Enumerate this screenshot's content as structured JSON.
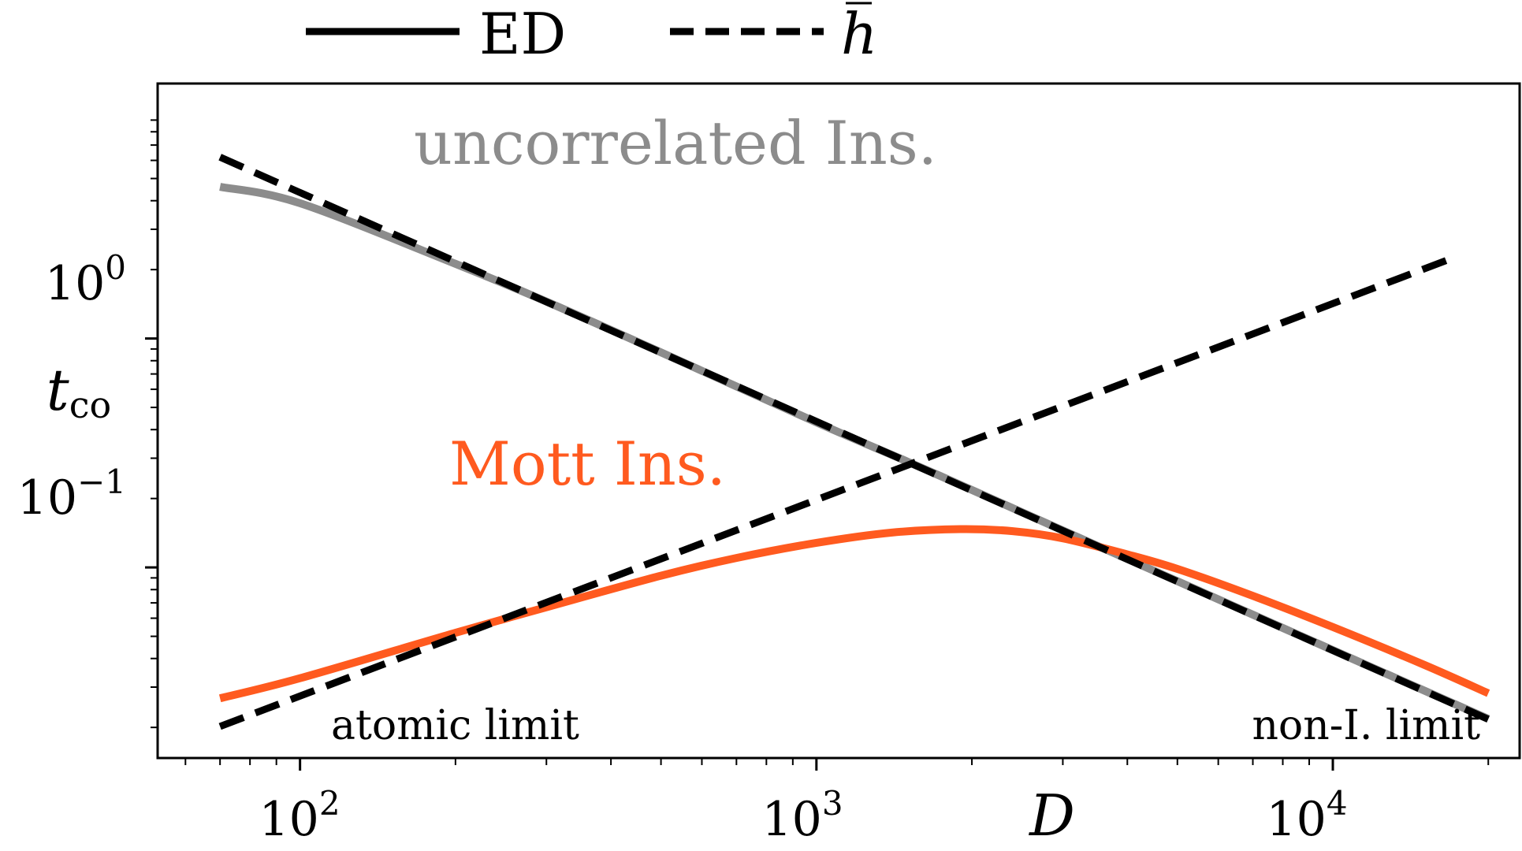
{
  "chart_data": {
    "type": "line",
    "xscale": "log",
    "yscale": "log",
    "xlabel": "D",
    "ylabel": "t",
    "ylabel_subscript": "co",
    "xlim": [
      53,
      23000
    ],
    "ylim": [
      0.0147,
      13
    ],
    "xticks": [
      {
        "value": 100,
        "base": "10",
        "exp": "2"
      },
      {
        "value": 1000,
        "base": "10",
        "exp": "3"
      },
      {
        "value": 10000,
        "base": "10",
        "exp": "4"
      }
    ],
    "yticks": [
      {
        "value": 1,
        "base": "10",
        "exp": "0"
      },
      {
        "value": 0.1,
        "base": "10",
        "exp": "−1"
      }
    ],
    "legend": {
      "placement": "top-center",
      "entries": [
        {
          "label": "ED",
          "style": "solid",
          "color": "#000000"
        },
        {
          "label": "h",
          "overbar": true,
          "style": "dashed",
          "color": "#000000"
        }
      ]
    },
    "series": [
      {
        "name": "uncorrelated Ins.",
        "style": "solid",
        "color": "#8c8c8c",
        "x": [
          70,
          100,
          200,
          300,
          500,
          1000,
          1500,
          2000,
          3000,
          5000,
          10000,
          20000
        ],
        "y": [
          4.6,
          3.9,
          2.12,
          1.45,
          0.87,
          0.43,
          0.29,
          0.218,
          0.145,
          0.0871,
          0.0435,
          0.0218
        ]
      },
      {
        "name": "Mott Ins.",
        "style": "solid",
        "color": "#ff5a1f",
        "x": [
          70,
          100,
          200,
          300,
          500,
          700,
          1000,
          1400,
          1900,
          2400,
          3000,
          4000,
          5000,
          7000,
          10000,
          15000,
          20000
        ],
        "y": [
          0.0268,
          0.0328,
          0.0518,
          0.067,
          0.092,
          0.11,
          0.128,
          0.142,
          0.147,
          0.144,
          0.134,
          0.114,
          0.0985,
          0.0751,
          0.0549,
          0.0376,
          0.0282
        ]
      },
      {
        "name": "uncorrelated Ins. approximation",
        "style": "dashed",
        "color": "#000000",
        "x": [
          70,
          20000
        ],
        "y": [
          6.2,
          0.0217
        ]
      },
      {
        "name": "Mott Ins. approximation",
        "style": "dashed",
        "color": "#000000",
        "x": [
          70,
          17000
        ],
        "y": [
          0.0202,
          2.24
        ]
      }
    ],
    "annotations": [
      {
        "text": "uncorrelated Ins.",
        "color": "#8c8c8c"
      },
      {
        "text": "Mott Ins.",
        "color": "#ff5a1f"
      },
      {
        "text": "atomic limit",
        "color": "#000000"
      },
      {
        "text": "non-I. limit",
        "color": "#000000"
      }
    ],
    "grid": false
  }
}
